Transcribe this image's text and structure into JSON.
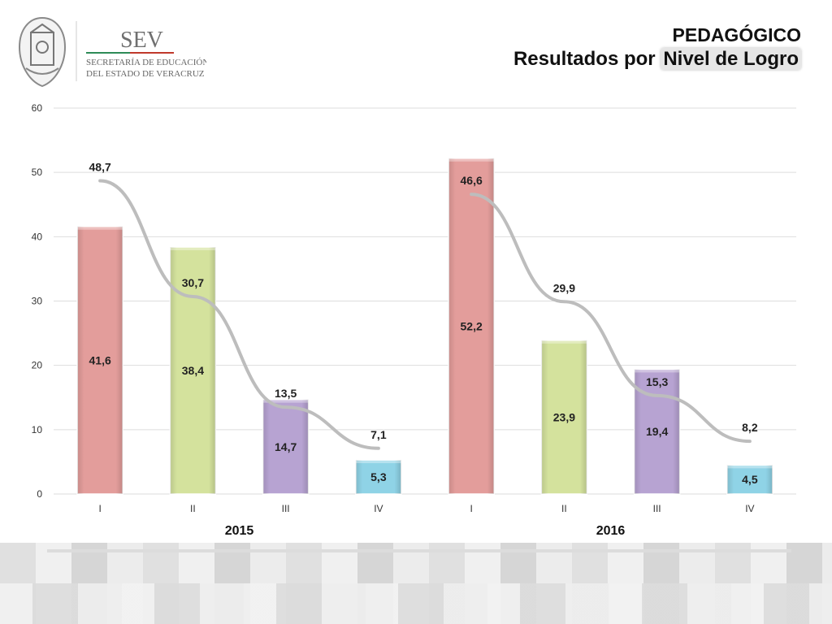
{
  "header": {
    "logo_text_main": "SEV",
    "logo_text_line1": "SECRETARÍA DE EDUCACIÓN",
    "logo_text_line2": "DEL ESTADO DE VERACRUZ",
    "title_line1": "PEDAGÓGICO",
    "title_line2_prefix": "Resultados por ",
    "title_line2_highlight": "Nivel de Logro"
  },
  "colors": {
    "level_I": "#e39d9b",
    "level_II": "#d4e29d",
    "level_III": "#b7a3d2",
    "level_IV": "#8fd3e6",
    "trend_line": "#bdbdbd",
    "grid": "#dddddd"
  },
  "chart_data": {
    "type": "bar",
    "groups": [
      "2015",
      "2016"
    ],
    "categories": [
      "I",
      "II",
      "III",
      "IV"
    ],
    "ylim": [
      0,
      60
    ],
    "yticks": [
      0,
      10,
      20,
      30,
      40,
      50,
      60
    ],
    "grid": true,
    "series": [
      {
        "values_2015": [
          41.6,
          38.4,
          14.7,
          5.3
        ],
        "values_2016": [
          52.2,
          23.9,
          19.4,
          4.5
        ],
        "labels_2015": [
          "41,6",
          "38,4",
          "14,7",
          "5,3"
        ],
        "labels_2016": [
          "52,2",
          "23,9",
          "19,4",
          "4,5"
        ]
      }
    ],
    "line_series": {
      "values_2015": [
        48.7,
        30.7,
        13.5,
        7.1
      ],
      "values_2016": [
        46.6,
        29.9,
        15.3,
        8.2
      ],
      "labels_2015": [
        "48,7",
        "30,7",
        "13,5",
        "7,1"
      ],
      "labels_2016": [
        "46,6",
        "29,9",
        "15,3",
        "8,2"
      ]
    }
  }
}
